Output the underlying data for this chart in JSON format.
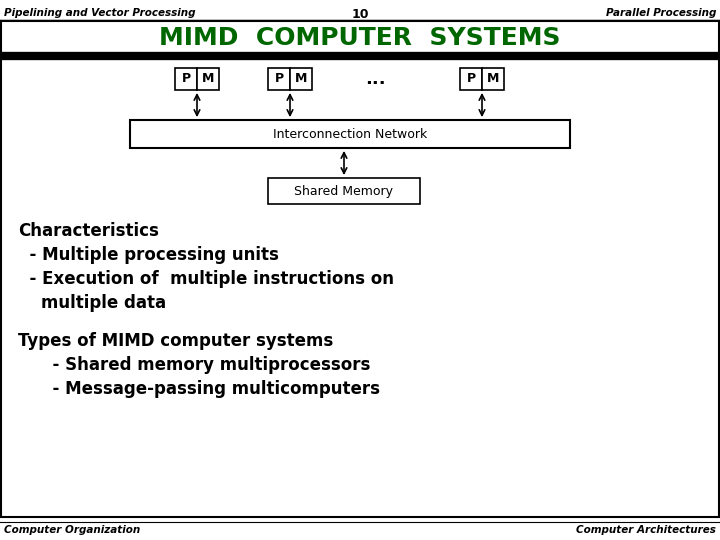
{
  "header_left": "Pipelining and Vector Processing",
  "header_center": "10",
  "header_right": "Parallel Processing",
  "title": "MIMD  COMPUTER  SYSTEMS",
  "title_color": "#006600",
  "footer_left": "Computer Organization",
  "footer_right": "Computer Architectures",
  "interconnect_label": "Interconnection Network",
  "shared_mem_label": "Shared Memory",
  "characteristics_header": "Characteristics",
  "char_line1": "  - Multiple processing units",
  "char_line2": "  - Execution of  multiple instructions on",
  "char_line3": "    multiple data",
  "types_header": "Types of MIMD computer systems",
  "types_line1": "      - Shared memory multiprocessors",
  "types_line2": "      - Message-passing multicomputers",
  "bg_color": "#ffffff",
  "border_color": "#000000"
}
